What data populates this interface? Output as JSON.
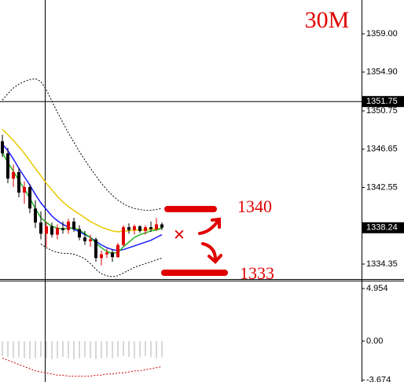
{
  "chart_data": [
    {
      "type": "candlestick",
      "title": "30M",
      "categories": [
        null,
        null,
        null,
        null,
        null,
        null,
        null,
        null,
        null,
        null,
        null,
        null,
        null,
        null,
        null,
        null,
        null,
        null,
        null,
        null,
        null,
        null,
        null,
        null,
        null,
        null,
        null,
        null,
        null,
        null
      ],
      "open": [
        1347.5,
        1346.2,
        1343.5,
        1344.2,
        1342.0,
        1342.6,
        1340.3,
        1338.8,
        1337.6,
        1338.4,
        1337.5,
        1338.2,
        1338.0,
        1338.9,
        1338.1,
        1337.2,
        1336.8,
        1337.0,
        1335.0,
        1335.4,
        1335.6,
        1335.1,
        1336.4,
        1338.3,
        1338.0,
        1338.4,
        1337.9,
        1338.3,
        1338.1,
        1338.6
      ],
      "high": [
        1348.2,
        1346.8,
        1345.0,
        1344.6,
        1343.2,
        1342.9,
        1341.2,
        1340.0,
        1338.9,
        1338.8,
        1338.6,
        1338.9,
        1339.2,
        1339.3,
        1338.5,
        1337.9,
        1337.5,
        1337.2,
        1335.8,
        1336.0,
        1335.9,
        1336.6,
        1338.5,
        1338.7,
        1338.6,
        1338.5,
        1338.5,
        1338.9,
        1339.3,
        1338.8
      ],
      "low": [
        1345.8,
        1343.0,
        1342.6,
        1341.5,
        1340.8,
        1339.8,
        1338.2,
        1337.0,
        1336.2,
        1337.2,
        1337.0,
        1337.6,
        1337.6,
        1337.8,
        1336.9,
        1336.4,
        1336.2,
        1334.6,
        1334.2,
        1335.0,
        1334.6,
        1335.0,
        1336.2,
        1337.6,
        1337.5,
        1337.7,
        1337.5,
        1337.8,
        1337.9,
        1338.0
      ],
      "close": [
        1346.2,
        1343.5,
        1344.2,
        1342.0,
        1342.6,
        1340.3,
        1338.8,
        1337.6,
        1338.4,
        1337.5,
        1338.2,
        1338.0,
        1338.9,
        1338.1,
        1337.2,
        1336.8,
        1337.0,
        1335.0,
        1335.4,
        1335.6,
        1335.1,
        1336.4,
        1338.3,
        1338.0,
        1338.4,
        1337.9,
        1338.3,
        1338.1,
        1338.6,
        1338.24
      ],
      "up_color": "#e00000",
      "down_color": "#000000",
      "series": [
        {
          "color": "#e8c800",
          "dashed": false,
          "values": [
            1348.8,
            1348.2,
            1347.6,
            1346.9,
            1346.2,
            1345.4,
            1344.6,
            1343.8,
            1343.0,
            1342.3,
            1341.6,
            1341.0,
            1340.5,
            1340.1,
            1339.7,
            1339.3,
            1338.9,
            1338.6,
            1338.3,
            1338.1,
            1337.9,
            1337.8,
            1337.9,
            1337.9,
            1338.0,
            1338.0,
            1338.0,
            1338.1,
            1338.1,
            1338.2
          ]
        },
        {
          "color": "#1a1aff",
          "dashed": false,
          "values": [
            1347.2,
            1346.5,
            1345.6,
            1344.6,
            1343.7,
            1342.8,
            1341.8,
            1340.9,
            1340.2,
            1339.5,
            1339.0,
            1338.6,
            1338.3,
            1338.1,
            1337.8,
            1337.5,
            1337.2,
            1336.8,
            1336.4,
            1336.1,
            1335.9,
            1335.8,
            1335.9,
            1336.1,
            1336.3,
            1336.5,
            1336.7,
            1336.9,
            1337.2,
            1337.5
          ]
        },
        {
          "color": "#22b422",
          "dashed": false,
          "values": [
            1346.3,
            1345.2,
            1344.3,
            1343.3,
            1342.4,
            1341.4,
            1340.3,
            1339.3,
            1338.8,
            1338.4,
            1338.2,
            1338.1,
            1338.2,
            1338.2,
            1338.0,
            1337.6,
            1337.2,
            1336.6,
            1336.1,
            1335.7,
            1335.5,
            1335.6,
            1336.2,
            1336.7,
            1337.2,
            1337.5,
            1337.7,
            1337.9,
            1338.0,
            1338.2
          ]
        },
        {
          "color": "#000000",
          "dashed": true,
          "values": [
            1351.9,
            1352.6,
            1353.2,
            1353.6,
            1353.9,
            1354.1,
            1354.2,
            1353.9,
            1353.0,
            1351.8,
            1350.6,
            1349.5,
            1348.4,
            1347.4,
            1346.4,
            1345.5,
            1344.6,
            1343.8,
            1343.0,
            1342.3,
            1341.7,
            1341.2,
            1340.8,
            1340.5,
            1340.3,
            1340.2,
            1340.1,
            1340.1,
            1340.2,
            1340.3
          ]
        },
        {
          "color": "#000000",
          "dashed": true,
          "values": [
            null,
            null,
            null,
            null,
            null,
            null,
            null,
            1336.5,
            1336.1,
            1335.8,
            1335.6,
            1335.5,
            1335.5,
            1335.4,
            1335.2,
            1334.9,
            1334.4,
            1333.8,
            1333.3,
            1333.1,
            1333.0,
            1333.1,
            1333.4,
            1333.7,
            1334.0,
            1334.2,
            1334.4,
            1334.6,
            1334.8,
            1335.0
          ]
        }
      ],
      "ylim": [
        1332.75,
        1362.62
      ],
      "yticks": [
        {
          "value": 1359,
          "label": "1359.00"
        },
        {
          "value": 1354.9,
          "label": "1354.90"
        },
        1350.75,
        1346.65,
        1342.55,
        1334.35
      ],
      "crosshair": 1351.75,
      "last_price": 1338.24,
      "annotations": [
        "1340",
        "1333",
        "×"
      ]
    },
    {
      "type": "macd",
      "values": [
        -1.4,
        -1.5,
        -1.6,
        -1.5,
        -1.6,
        -1.7,
        -1.6,
        -1.5,
        -1.6,
        -1.7,
        -1.6,
        -1.5,
        -1.6,
        -1.7,
        -1.6,
        -1.5,
        -1.6,
        -1.7,
        -1.6,
        -1.5,
        -1.6,
        -1.5,
        -1.4,
        -1.5,
        -1.6,
        -1.5,
        -1.4,
        -1.5,
        -1.6,
        -1.5
      ],
      "color": "#b0b0b0",
      "series": [
        {
          "color": "#cc0000",
          "dashed": true,
          "values": [
            -1.6,
            -1.8,
            -2.0,
            -2.2,
            -2.4,
            -2.6,
            -2.8,
            -2.9,
            -3.0,
            -3.1,
            -3.2,
            -3.2,
            -3.3,
            -3.3,
            -3.3,
            -3.3,
            -3.3,
            -3.2,
            -3.2,
            -3.1,
            -3.1,
            -3.0,
            -3.0,
            -2.9,
            -2.8,
            -2.8,
            -2.7,
            -2.6,
            -2.5,
            -2.4
          ]
        }
      ],
      "ylim": [
        -3.85,
        5.7
      ],
      "yticks": [
        4.954,
        {
          "value": 0,
          "label": "0.00"
        },
        -3.674
      ]
    }
  ]
}
